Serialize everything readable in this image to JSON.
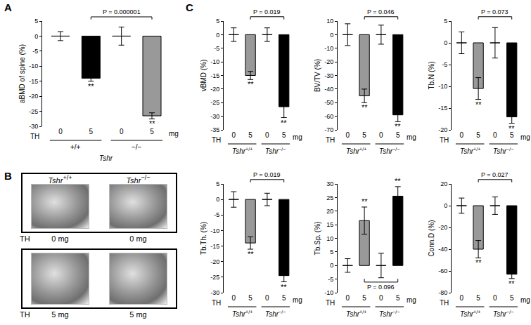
{
  "chart_data": [
    {
      "type": "bar",
      "panel": "A",
      "ylabel": "aBMD of spine (%)",
      "categories": [
        "0",
        "5",
        "0",
        "5"
      ],
      "values": [
        0,
        -14,
        0,
        -26.5
      ],
      "errors": [
        1.5,
        1,
        3,
        1
      ],
      "colors": [
        "#ffffff",
        "#000000",
        "#ffffff",
        "#999999"
      ],
      "ylim": [
        -30,
        5
      ],
      "yticks": [
        -30,
        -25,
        -20,
        -15,
        -10,
        -5,
        0,
        5
      ],
      "grid": false,
      "x_label": "TH",
      "x_unit": "mg",
      "groups": [
        {
          "label": "+/+",
          "from": 0,
          "to": 1
        },
        {
          "label": "−/−",
          "from": 2,
          "to": 3
        }
      ],
      "group_title": "Tshr",
      "significance": [
        null,
        "**",
        null,
        "**"
      ],
      "comparison": {
        "label": "P = 0.000001",
        "from": 1,
        "to": 3
      }
    },
    {
      "type": "bar",
      "panel": "C",
      "ylabel": "vBMD (%)",
      "categories": [
        "0",
        "5",
        "0",
        "5"
      ],
      "values": [
        0,
        -15,
        0,
        -26.5
      ],
      "errors": [
        2.5,
        1.5,
        2.5,
        4
      ],
      "colors": [
        "#ffffff",
        "#999999",
        "#ffffff",
        "#000000"
      ],
      "ylim": [
        -35,
        5
      ],
      "yticks": [
        -35,
        -30,
        -25,
        -20,
        -15,
        -10,
        -5,
        0,
        5
      ],
      "grid": false,
      "x_label": "TH",
      "x_unit": "mg",
      "groups": [
        {
          "label": "Tshr+/+",
          "from": 0,
          "to": 1
        },
        {
          "label": "Tshr−/−",
          "from": 2,
          "to": 3
        }
      ],
      "significance": [
        null,
        "**",
        null,
        "**"
      ],
      "comparison": {
        "label": "P = 0.019",
        "from": 1,
        "to": 3
      }
    },
    {
      "type": "bar",
      "ylabel": "BV/TV (%)",
      "categories": [
        "0",
        "5",
        "0",
        "5"
      ],
      "values": [
        0,
        -45,
        0,
        -59
      ],
      "errors": [
        8,
        5,
        7,
        5
      ],
      "colors": [
        "#ffffff",
        "#999999",
        "#ffffff",
        "#000000"
      ],
      "ylim": [
        -70,
        10
      ],
      "yticks": [
        -70,
        -60,
        -50,
        -40,
        -30,
        -20,
        -10,
        0,
        10
      ],
      "grid": false,
      "x_label": "TH",
      "x_unit": "mg",
      "groups": [
        {
          "label": "Tshr+/+",
          "from": 0,
          "to": 1
        },
        {
          "label": "Tshr−/−",
          "from": 2,
          "to": 3
        }
      ],
      "significance": [
        null,
        "**",
        null,
        "**"
      ],
      "comparison": {
        "label": "P = 0.046",
        "from": 1,
        "to": 3
      }
    },
    {
      "type": "bar",
      "ylabel": "Tb.N (%)",
      "categories": [
        "0",
        "5",
        "0",
        "5"
      ],
      "values": [
        0,
        -10.5,
        0,
        -17
      ],
      "errors": [
        2.5,
        2.5,
        3.5,
        1.5
      ],
      "colors": [
        "#ffffff",
        "#999999",
        "#ffffff",
        "#000000"
      ],
      "ylim": [
        -20,
        5
      ],
      "yticks": [
        -20,
        -15,
        -10,
        -5,
        0,
        5
      ],
      "grid": false,
      "x_label": "TH",
      "x_unit": "mg",
      "groups": [
        {
          "label": "Tshr+/+",
          "from": 0,
          "to": 1
        },
        {
          "label": "Tshr−/−",
          "from": 2,
          "to": 3
        }
      ],
      "significance": [
        null,
        "**",
        null,
        "**"
      ],
      "comparison": {
        "label": "P = 0.073",
        "from": 1,
        "to": 3
      }
    },
    {
      "type": "bar",
      "ylabel": "Tb.Th. (%)",
      "categories": [
        "0",
        "5",
        "0",
        "5"
      ],
      "values": [
        0,
        -14,
        0,
        -24.5
      ],
      "errors": [
        2.5,
        2,
        2,
        2
      ],
      "colors": [
        "#ffffff",
        "#999999",
        "#ffffff",
        "#000000"
      ],
      "ylim": [
        -30,
        5
      ],
      "yticks": [
        -30,
        -25,
        -20,
        -15,
        -10,
        -5,
        0,
        5
      ],
      "grid": false,
      "x_label": "TH",
      "x_unit": "mg",
      "groups": [
        {
          "label": "Tshr+/+",
          "from": 0,
          "to": 1
        },
        {
          "label": "Tshr−/−",
          "from": 2,
          "to": 3
        }
      ],
      "significance": [
        null,
        "**",
        null,
        "**"
      ],
      "comparison": {
        "label": "P = 0.019",
        "from": 1,
        "to": 3
      }
    },
    {
      "type": "bar",
      "ylabel": "Tb.Sp. (%)",
      "categories": [
        "0",
        "5",
        "0",
        "5"
      ],
      "values": [
        0,
        16.5,
        0,
        25.5
      ],
      "errors": [
        2.5,
        5,
        4.5,
        3.5
      ],
      "colors": [
        "#ffffff",
        "#999999",
        "#ffffff",
        "#000000"
      ],
      "ylim": [
        -10,
        30
      ],
      "yticks": [
        -10,
        -5,
        0,
        5,
        10,
        15,
        20,
        25,
        30
      ],
      "grid": false,
      "x_label": "TH",
      "x_unit": "mg",
      "groups": [
        {
          "label": "Tshr+/+",
          "from": 0,
          "to": 1
        },
        {
          "label": "Tshr−/−",
          "from": 2,
          "to": 3
        }
      ],
      "significance": [
        null,
        "**",
        null,
        "**"
      ],
      "comparison": {
        "label": "P = 0.096",
        "from": 1,
        "to": 3
      }
    },
    {
      "type": "bar",
      "ylabel": "Conn.D (%)",
      "categories": [
        "0",
        "5",
        "0",
        "5"
      ],
      "values": [
        0,
        -40,
        0,
        -63
      ],
      "errors": [
        7,
        8,
        8,
        4
      ],
      "colors": [
        "#ffffff",
        "#999999",
        "#ffffff",
        "#000000"
      ],
      "ylim": [
        -80,
        20
      ],
      "yticks": [
        -80,
        -60,
        -40,
        -20,
        0,
        20
      ],
      "grid": false,
      "x_label": "TH",
      "x_unit": "mg",
      "groups": [
        {
          "label": "Tshr+/+",
          "from": 0,
          "to": 1
        },
        {
          "label": "Tshr−/−",
          "from": 2,
          "to": 3
        }
      ],
      "significance": [
        null,
        "**",
        null,
        "**"
      ],
      "comparison": {
        "label": "P = 0.027",
        "from": 1,
        "to": 3
      }
    }
  ],
  "panel_b": {
    "panel": "B",
    "columns": [
      "Tshr+/+",
      "Tshr−/−"
    ],
    "row_label": "TH",
    "rows": [
      "0 mg",
      "5 mg"
    ]
  }
}
